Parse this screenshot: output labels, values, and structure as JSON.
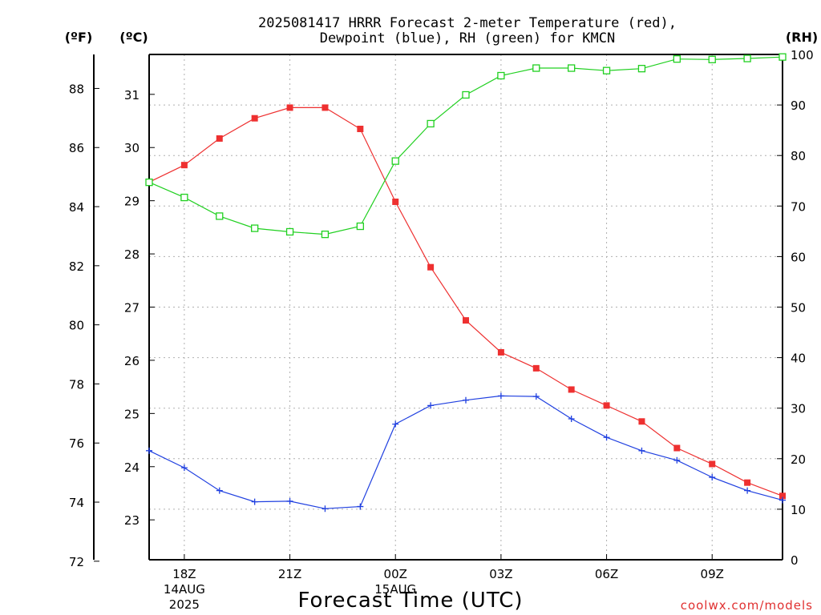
{
  "chart_data": {
    "type": "line",
    "title_line1": "2025081417 HRRR Forecast 2-meter Temperature (red),",
    "title_line2": "Dewpoint (blue), RH (green) for KMCN",
    "xlabel": "Forecast Time (UTC)",
    "credit": "coolwx.com/models",
    "units": {
      "fahrenheit": "(ºF)",
      "celsius": "(ºC)",
      "rh": "(RH)"
    },
    "x": [
      17,
      18,
      19,
      20,
      21,
      22,
      23,
      24,
      25,
      26,
      27,
      28,
      29,
      30,
      31,
      32,
      33,
      34,
      35
    ],
    "x_ticks": [
      {
        "x": 18,
        "label": "18Z",
        "date": "14AUG",
        "year": "2025"
      },
      {
        "x": 21,
        "label": "21Z",
        "date": "",
        "year": ""
      },
      {
        "x": 24,
        "label": "00Z",
        "date": "15AUG",
        "year": ""
      },
      {
        "x": 27,
        "label": "03Z",
        "date": "",
        "year": ""
      },
      {
        "x": 30,
        "label": "06Z",
        "date": "",
        "year": ""
      },
      {
        "x": 33,
        "label": "09Z",
        "date": "",
        "year": ""
      }
    ],
    "xlim": [
      17,
      35
    ],
    "y_celsius_lim": [
      22.25,
      31.75
    ],
    "y_celsius_ticks": [
      "23",
      "24",
      "25",
      "26",
      "27",
      "28",
      "29",
      "30",
      "31"
    ],
    "y_fahrenheit_ticks": [
      "72",
      "74",
      "76",
      "78",
      "80",
      "82",
      "84",
      "86",
      "88"
    ],
    "y_rh_lim": [
      0,
      100
    ],
    "y_rh_ticks": [
      "0",
      "10",
      "20",
      "30",
      "40",
      "50",
      "60",
      "70",
      "80",
      "90",
      "100"
    ],
    "grid": true,
    "colors": {
      "temperature": "#ee3030",
      "dewpoint": "#2040e0",
      "rh": "#20d020"
    },
    "series": [
      {
        "axis": "celsius",
        "marker": "filled-square",
        "values": [
          29.35,
          29.67,
          30.17,
          30.55,
          30.75,
          30.75,
          30.35,
          28.98,
          27.75,
          26.75,
          26.15,
          25.85,
          25.45,
          25.15,
          24.85,
          24.35,
          24.05,
          23.7,
          23.45
        ]
      },
      {
        "axis": "celsius",
        "marker": "plus",
        "values": [
          24.3,
          23.98,
          23.55,
          23.34,
          23.35,
          23.21,
          23.25,
          24.8,
          25.15,
          25.25,
          25.33,
          25.32,
          24.9,
          24.55,
          24.3,
          24.12,
          23.8,
          23.55,
          23.37
        ]
      },
      {
        "axis": "rh",
        "marker": "open-square",
        "values": [
          74.7,
          71.7,
          68.0,
          65.6,
          64.9,
          64.4,
          66.0,
          78.9,
          86.3,
          92.0,
          95.8,
          97.3,
          97.3,
          96.8,
          97.2,
          99.1,
          99.0,
          99.2,
          99.5
        ]
      }
    ]
  }
}
